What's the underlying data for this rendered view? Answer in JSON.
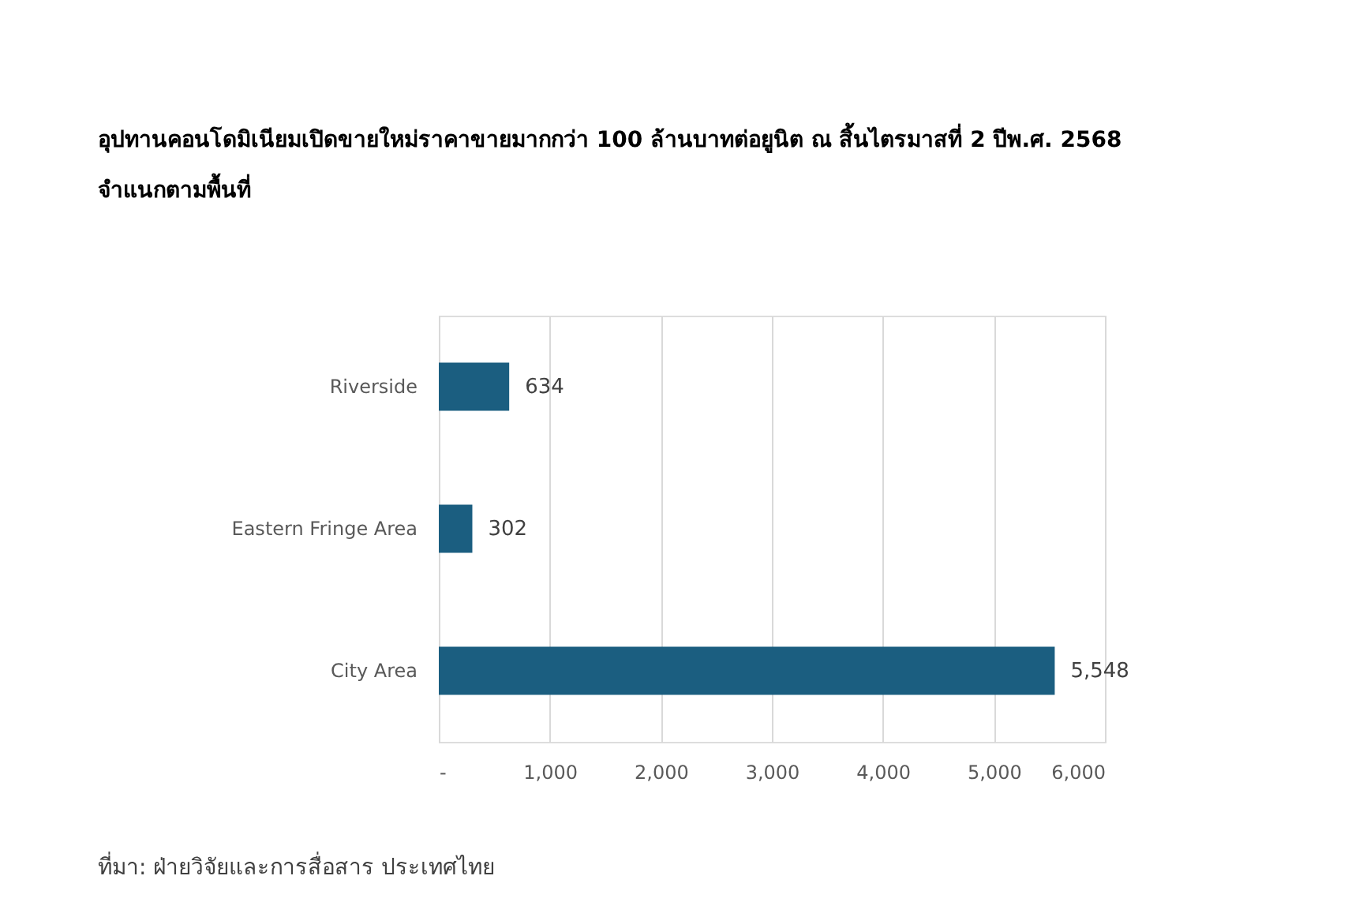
{
  "chart_data": {
    "type": "bar",
    "orientation": "horizontal",
    "title": "อุปทานคอนโดมิเนียมเปิดขายใหม่ราคาขายมากกว่า 100 ล้านบาทต่อยูนิต ณ สิ้นไตรมาสที่ 2  ปีพ.ศ. 2568 จำแนกตามพื้นที่",
    "categories": [
      "Riverside",
      "Eastern Fringe Area",
      "City Area"
    ],
    "values": [
      634,
      302,
      5548
    ],
    "color": "#1b5e80",
    "xlim": [
      0,
      6000
    ],
    "xticks": [
      {
        "value": 0,
        "label": "-"
      },
      {
        "value": 1000,
        "label": "1,000"
      },
      {
        "value": 2000,
        "label": "2,000"
      },
      {
        "value": 3000,
        "label": "3,000"
      },
      {
        "value": 4000,
        "label": "4,000"
      },
      {
        "value": 5000,
        "label": "5,000"
      },
      {
        "value": 6000,
        "label": "6,000"
      }
    ],
    "grid": "x",
    "value_labels": [
      "634",
      "302",
      "5,548"
    ],
    "annotations": [
      "ที่มา: ฝ่ายวิจัยและการสื่อสาร ประเทศไทย"
    ]
  }
}
